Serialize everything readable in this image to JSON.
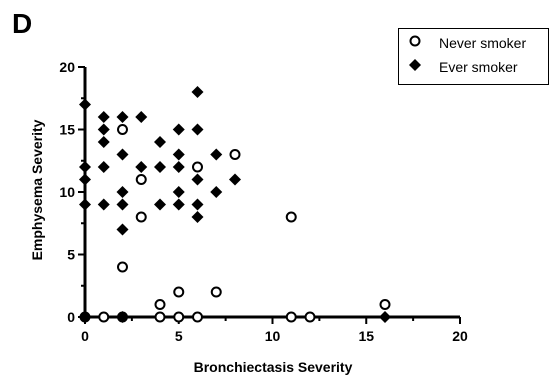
{
  "panel_label": "D",
  "chart_data": {
    "type": "scatter",
    "title": "",
    "xlabel": "Bronchiectasis Severity",
    "ylabel": "Emphysema Severity",
    "xlim": [
      0,
      20
    ],
    "ylim": [
      0,
      20
    ],
    "xticks": [
      "0",
      "5",
      "10",
      "15",
      "20"
    ],
    "yticks": [
      "0",
      "5",
      "10",
      "15",
      "20"
    ],
    "grid": false,
    "legend_position": "top-right",
    "series": [
      {
        "name": "Never smoker",
        "marker": "open-circle",
        "color": "#000000",
        "points": [
          [
            0,
            0
          ],
          [
            1,
            0
          ],
          [
            2,
            0
          ],
          [
            2,
            4
          ],
          [
            2,
            15
          ],
          [
            3,
            8
          ],
          [
            3,
            11
          ],
          [
            4,
            0
          ],
          [
            4,
            1
          ],
          [
            5,
            0
          ],
          [
            5,
            2
          ],
          [
            6,
            0
          ],
          [
            6,
            12
          ],
          [
            7,
            2
          ],
          [
            8,
            13
          ],
          [
            11,
            0
          ],
          [
            11,
            8
          ],
          [
            12,
            0
          ],
          [
            16,
            1
          ]
        ]
      },
      {
        "name": "Ever smoker",
        "marker": "filled-diamond",
        "color": "#000000",
        "points": [
          [
            0,
            0
          ],
          [
            0,
            9
          ],
          [
            0,
            11
          ],
          [
            0,
            12
          ],
          [
            0,
            17
          ],
          [
            1,
            9
          ],
          [
            1,
            12
          ],
          [
            1,
            14
          ],
          [
            1,
            15
          ],
          [
            1,
            16
          ],
          [
            2,
            0
          ],
          [
            2,
            7
          ],
          [
            2,
            9
          ],
          [
            2,
            10
          ],
          [
            2,
            13
          ],
          [
            2,
            16
          ],
          [
            3,
            12
          ],
          [
            3,
            16
          ],
          [
            4,
            9
          ],
          [
            4,
            12
          ],
          [
            4,
            14
          ],
          [
            5,
            9
          ],
          [
            5,
            10
          ],
          [
            5,
            12
          ],
          [
            5,
            13
          ],
          [
            5,
            15
          ],
          [
            6,
            8
          ],
          [
            6,
            9
          ],
          [
            6,
            11
          ],
          [
            6,
            15
          ],
          [
            6,
            18
          ],
          [
            7,
            10
          ],
          [
            7,
            13
          ],
          [
            8,
            11
          ],
          [
            16,
            0
          ]
        ]
      }
    ]
  }
}
